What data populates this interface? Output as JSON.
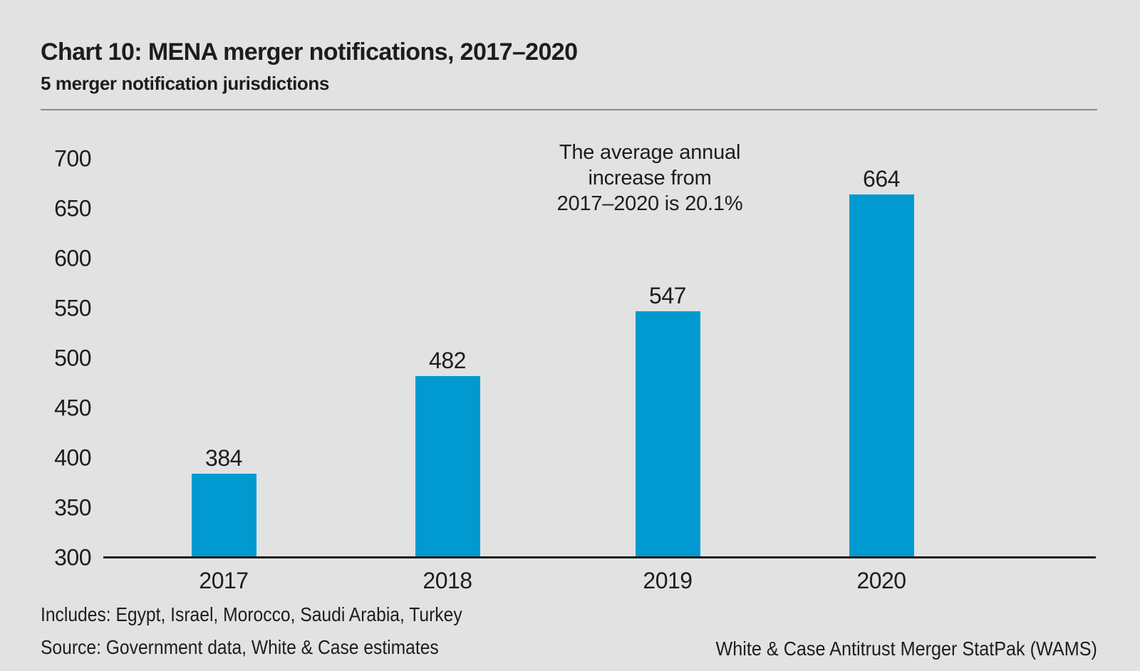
{
  "page": {
    "background_color": "#e2e2e2",
    "text_color": "#1d1d1b"
  },
  "header": {
    "title": "Chart 10: MENA merger notifications, 2017–2020",
    "subtitle": "5 merger notification jurisdictions"
  },
  "chart_data": {
    "type": "bar",
    "title": "Chart 10: MENA merger notifications, 2017–2020",
    "subtitle": "5 merger notification jurisdictions",
    "categories": [
      "2017",
      "2018",
      "2019",
      "2020"
    ],
    "values": [
      384,
      482,
      547,
      664
    ],
    "bar_color": "#009ad0",
    "xlabel": "",
    "ylabel": "",
    "ylim": [
      300,
      700
    ],
    "yticks": [
      700,
      650,
      600,
      550,
      500,
      450,
      400,
      350,
      300
    ],
    "grid": false,
    "legend": "none",
    "annotation": "The average annual increase from 2017–2020 is 20.1%",
    "annotation_lines": [
      "The average annual",
      "increase from",
      "2017–2020 is 20.1%"
    ]
  },
  "footer": {
    "includes": "Includes: Egypt, Israel, Morocco, Saudi Arabia, Turkey",
    "source": "Source: Government data, White & Case estimates",
    "attribution": "White & Case Antitrust Merger StatPak (WAMS)"
  }
}
